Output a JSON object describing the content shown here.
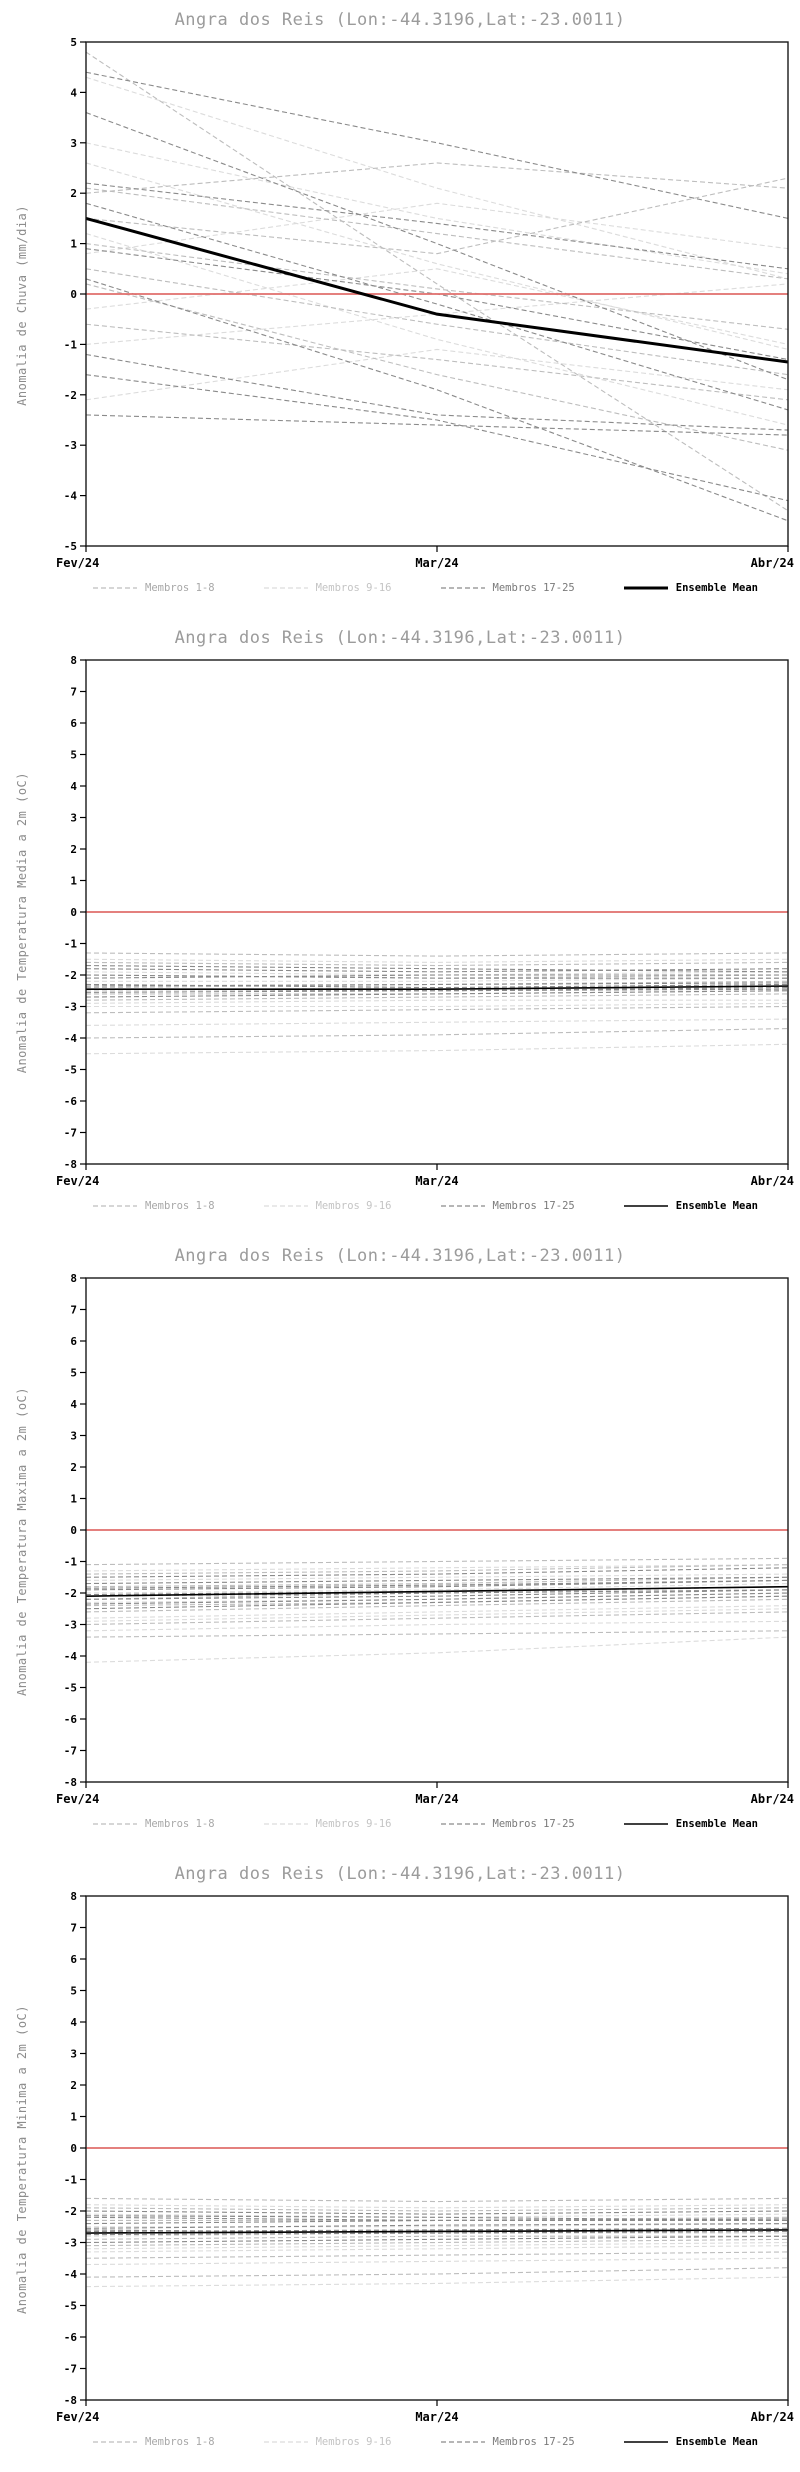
{
  "page_title": "Angra dos Reis ensemble anomaly forecasts",
  "colors": {
    "title_text": "#9b9b9b",
    "ylabel_text": "#8c8c8c",
    "axis_frame": "#1a1a1a",
    "zero_line": "#e06e6c",
    "members_1_8": "#bdbdbd",
    "members_9_16": "#dcdcdc",
    "members_17_25": "#8a8a8a",
    "ensemble_mean": "#000000"
  },
  "chart_data": [
    {
      "type": "line",
      "title": "Angra dos Reis (Lon:-44.3196,Lat:-23.0011)",
      "ylabel": "Anomalia de Chuva (mm/dia)",
      "ylim": [
        -5,
        5
      ],
      "ytick_step": 1,
      "x_labels": [
        "Fev/24",
        "Mar/24",
        "Abr/24"
      ],
      "grid": false,
      "legend_position": "bottom",
      "zero_line": {
        "value": 0,
        "color": "#e06e6c"
      },
      "mean_stroke_width": 3,
      "legend": [
        {
          "id": "m1_8",
          "label": "Membros 1-8",
          "color": "#bdbdbd",
          "text_color": "#a8a8a8",
          "style": "dashed"
        },
        {
          "id": "m9_16",
          "label": "Membros 9-16",
          "color": "#dcdcdc",
          "text_color": "#c4c4c4",
          "style": "dashed"
        },
        {
          "id": "m17_25",
          "label": "Membros 17-25",
          "color": "#8a8a8a",
          "text_color": "#7a7a7a",
          "style": "dashed"
        },
        {
          "id": "mean",
          "label": "Ensemble Mean",
          "color": "#000000",
          "text_color": "#000000",
          "style": "solid"
        }
      ],
      "series": [
        {
          "legend": "m1_8",
          "values": [
            2.1,
            1.2,
            0.3
          ]
        },
        {
          "legend": "m1_8",
          "values": [
            1.0,
            0.1,
            -0.7
          ]
        },
        {
          "legend": "m1_8",
          "values": [
            4.8,
            0.2,
            -4.3
          ]
        },
        {
          "legend": "m1_8",
          "values": [
            0.5,
            -0.6,
            -1.6
          ]
        },
        {
          "legend": "m1_8",
          "values": [
            2.0,
            2.6,
            2.1
          ]
        },
        {
          "legend": "m1_8",
          "values": [
            -0.6,
            -1.3,
            -2.1
          ]
        },
        {
          "legend": "m1_8",
          "values": [
            1.5,
            0.8,
            2.3
          ]
        },
        {
          "legend": "m1_8",
          "values": [
            0.2,
            -1.6,
            -3.1
          ]
        },
        {
          "legend": "m9_16",
          "values": [
            3.0,
            1.5,
            0.4
          ]
        },
        {
          "legend": "m9_16",
          "values": [
            -1.0,
            -0.4,
            0.2
          ]
        },
        {
          "legend": "m9_16",
          "values": [
            2.6,
            0.6,
            -1.1
          ]
        },
        {
          "legend": "m9_16",
          "values": [
            0.8,
            1.8,
            0.9
          ]
        },
        {
          "legend": "m9_16",
          "values": [
            -2.1,
            -1.1,
            -1.9
          ]
        },
        {
          "legend": "m9_16",
          "values": [
            1.2,
            -0.9,
            -2.6
          ]
        },
        {
          "legend": "m9_16",
          "values": [
            4.3,
            2.1,
            0.3
          ]
        },
        {
          "legend": "m9_16",
          "values": [
            -0.3,
            0.5,
            -1.0
          ]
        },
        {
          "legend": "m17_25",
          "values": [
            4.4,
            3.0,
            1.5
          ]
        },
        {
          "legend": "m17_25",
          "values": [
            2.2,
            1.4,
            0.5
          ]
        },
        {
          "legend": "m17_25",
          "values": [
            1.8,
            -0.2,
            -2.3
          ]
        },
        {
          "legend": "m17_25",
          "values": [
            -1.2,
            -2.4,
            -2.7
          ]
        },
        {
          "legend": "m17_25",
          "values": [
            0.9,
            0.0,
            -1.3
          ]
        },
        {
          "legend": "m17_25",
          "values": [
            -1.6,
            -2.5,
            -4.1
          ]
        },
        {
          "legend": "m17_25",
          "values": [
            3.6,
            1.0,
            -1.7
          ]
        },
        {
          "legend": "m17_25",
          "values": [
            0.3,
            -1.9,
            -4.5
          ]
        },
        {
          "legend": "m17_25",
          "values": [
            -2.4,
            -2.6,
            -2.8
          ]
        },
        {
          "legend": "mean",
          "values": [
            1.5,
            -0.4,
            -1.35
          ]
        }
      ]
    },
    {
      "type": "line",
      "title": "Angra dos Reis (Lon:-44.3196,Lat:-23.0011)",
      "ylabel": "Anomalia de Temperatura Media a 2m (oC)",
      "ylim": [
        -8,
        8
      ],
      "ytick_step": 1,
      "x_labels": [
        "Fev/24",
        "Mar/24",
        "Abr/24"
      ],
      "grid": false,
      "legend_position": "bottom",
      "zero_line": {
        "value": 0,
        "color": "#e06e6c"
      },
      "mean_stroke_width": 1.6,
      "legend": [
        {
          "id": "m1_8",
          "label": "Membros 1-8",
          "color": "#bdbdbd",
          "text_color": "#a8a8a8",
          "style": "dashed"
        },
        {
          "id": "m9_16",
          "label": "Membros 9-16",
          "color": "#dcdcdc",
          "text_color": "#c4c4c4",
          "style": "dashed"
        },
        {
          "id": "m17_25",
          "label": "Membros 17-25",
          "color": "#8a8a8a",
          "text_color": "#7a7a7a",
          "style": "dashed"
        },
        {
          "id": "mean",
          "label": "Ensemble Mean",
          "color": "#000000",
          "text_color": "#000000",
          "style": "solid"
        }
      ],
      "series": [
        {
          "legend": "m1_8",
          "values": [
            -1.6,
            -1.7,
            -1.6
          ]
        },
        {
          "legend": "m1_8",
          "values": [
            -2.0,
            -2.1,
            -2.0
          ]
        },
        {
          "legend": "m1_8",
          "values": [
            -2.4,
            -2.3,
            -2.2
          ]
        },
        {
          "legend": "m1_8",
          "values": [
            -2.8,
            -2.7,
            -2.6
          ]
        },
        {
          "legend": "m1_8",
          "values": [
            -3.2,
            -3.1,
            -3.0
          ]
        },
        {
          "legend": "m1_8",
          "values": [
            -1.3,
            -1.4,
            -1.3
          ]
        },
        {
          "legend": "m1_8",
          "values": [
            -2.6,
            -2.6,
            -2.5
          ]
        },
        {
          "legend": "m1_8",
          "values": [
            -4.0,
            -3.9,
            -3.7
          ]
        },
        {
          "legend": "m9_16",
          "values": [
            -4.5,
            -4.4,
            -4.2
          ]
        },
        {
          "legend": "m9_16",
          "values": [
            -3.6,
            -3.5,
            -3.4
          ]
        },
        {
          "legend": "m9_16",
          "values": [
            -1.9,
            -2.0,
            -1.9
          ]
        },
        {
          "legend": "m9_16",
          "values": [
            -2.2,
            -2.2,
            -2.1
          ]
        },
        {
          "legend": "m9_16",
          "values": [
            -2.9,
            -2.8,
            -2.8
          ]
        },
        {
          "legend": "m9_16",
          "values": [
            -2.5,
            -2.4,
            -2.4
          ]
        },
        {
          "legend": "m9_16",
          "values": [
            -1.5,
            -1.6,
            -1.5
          ]
        },
        {
          "legend": "m9_16",
          "values": [
            -3.0,
            -3.0,
            -2.9
          ]
        },
        {
          "legend": "m17_25",
          "values": [
            -1.8,
            -1.9,
            -1.8
          ]
        },
        {
          "legend": "m17_25",
          "values": [
            -2.1,
            -2.0,
            -2.0
          ]
        },
        {
          "legend": "m17_25",
          "values": [
            -2.3,
            -2.4,
            -2.3
          ]
        },
        {
          "legend": "m17_25",
          "values": [
            -2.7,
            -2.6,
            -2.5
          ]
        },
        {
          "legend": "m17_25",
          "values": [
            -2.0,
            -2.1,
            -2.1
          ]
        },
        {
          "legend": "m17_25",
          "values": [
            -2.45,
            -2.5,
            -2.4
          ]
        },
        {
          "legend": "m17_25",
          "values": [
            -2.55,
            -2.5,
            -2.45
          ]
        },
        {
          "legend": "m17_25",
          "values": [
            -1.7,
            -1.8,
            -1.9
          ]
        },
        {
          "legend": "m17_25",
          "values": [
            -2.35,
            -2.3,
            -2.25
          ]
        },
        {
          "legend": "mean",
          "values": [
            -2.45,
            -2.45,
            -2.35
          ]
        }
      ]
    },
    {
      "type": "line",
      "title": "Angra dos Reis (Lon:-44.3196,Lat:-23.0011)",
      "ylabel": "Anomalia de Temperatura Maxima a 2m (oC)",
      "ylim": [
        -8,
        8
      ],
      "ytick_step": 1,
      "x_labels": [
        "Fev/24",
        "Mar/24",
        "Abr/24"
      ],
      "grid": false,
      "legend_position": "bottom",
      "zero_line": {
        "value": 0,
        "color": "#e06e6c"
      },
      "mean_stroke_width": 1.6,
      "legend": [
        {
          "id": "m1_8",
          "label": "Membros 1-8",
          "color": "#bdbdbd",
          "text_color": "#a8a8a8",
          "style": "dashed"
        },
        {
          "id": "m9_16",
          "label": "Membros 9-16",
          "color": "#dcdcdc",
          "text_color": "#c4c4c4",
          "style": "dashed"
        },
        {
          "id": "m17_25",
          "label": "Membros 17-25",
          "color": "#8a8a8a",
          "text_color": "#7a7a7a",
          "style": "dashed"
        },
        {
          "id": "mean",
          "label": "Ensemble Mean",
          "color": "#000000",
          "text_color": "#000000",
          "style": "solid"
        }
      ],
      "series": [
        {
          "legend": "m1_8",
          "values": [
            -1.4,
            -1.3,
            -1.1
          ]
        },
        {
          "legend": "m1_8",
          "values": [
            -1.8,
            -1.7,
            -1.5
          ]
        },
        {
          "legend": "m1_8",
          "values": [
            -2.2,
            -2.0,
            -1.8
          ]
        },
        {
          "legend": "m1_8",
          "values": [
            -2.6,
            -2.4,
            -2.2
          ]
        },
        {
          "legend": "m1_8",
          "values": [
            -3.0,
            -2.8,
            -2.6
          ]
        },
        {
          "legend": "m1_8",
          "values": [
            -1.1,
            -1.0,
            -0.9
          ]
        },
        {
          "legend": "m1_8",
          "values": [
            -2.4,
            -2.3,
            -2.1
          ]
        },
        {
          "legend": "m1_8",
          "values": [
            -3.4,
            -3.3,
            -3.2
          ]
        },
        {
          "legend": "m9_16",
          "values": [
            -4.2,
            -3.9,
            -3.4
          ]
        },
        {
          "legend": "m9_16",
          "values": [
            -3.2,
            -3.0,
            -2.9
          ]
        },
        {
          "legend": "m9_16",
          "values": [
            -1.6,
            -1.5,
            -1.4
          ]
        },
        {
          "legend": "m9_16",
          "values": [
            -2.0,
            -1.9,
            -1.7
          ]
        },
        {
          "legend": "m9_16",
          "values": [
            -2.8,
            -2.6,
            -2.4
          ]
        },
        {
          "legend": "m9_16",
          "values": [
            -2.3,
            -2.2,
            -2.0
          ]
        },
        {
          "legend": "m9_16",
          "values": [
            -1.3,
            -1.2,
            -1.1
          ]
        },
        {
          "legend": "m9_16",
          "values": [
            -2.9,
            -2.7,
            -2.5
          ]
        },
        {
          "legend": "m17_25",
          "values": [
            -1.5,
            -1.4,
            -1.2
          ]
        },
        {
          "legend": "m17_25",
          "values": [
            -1.9,
            -1.8,
            -1.6
          ]
        },
        {
          "legend": "m17_25",
          "values": [
            -2.1,
            -2.0,
            -1.9
          ]
        },
        {
          "legend": "m17_25",
          "values": [
            -2.5,
            -2.3,
            -2.1
          ]
        },
        {
          "legend": "m17_25",
          "values": [
            -1.7,
            -1.6,
            -1.5
          ]
        },
        {
          "legend": "m17_25",
          "values": [
            -2.2,
            -2.1,
            -1.9
          ]
        },
        {
          "legend": "m17_25",
          "values": [
            -2.35,
            -2.2,
            -2.0
          ]
        },
        {
          "legend": "m17_25",
          "values": [
            -1.85,
            -1.75,
            -1.6
          ]
        },
        {
          "legend": "m17_25",
          "values": [
            -2.05,
            -1.95,
            -1.8
          ]
        },
        {
          "legend": "mean",
          "values": [
            -2.1,
            -1.95,
            -1.8
          ]
        }
      ]
    },
    {
      "type": "line",
      "title": "Angra dos Reis (Lon:-44.3196,Lat:-23.0011)",
      "ylabel": "Anomalia de Temperatura Minima a 2m (oC)",
      "ylim": [
        -8,
        8
      ],
      "ytick_step": 1,
      "x_labels": [
        "Fev/24",
        "Mar/24",
        "Abr/24"
      ],
      "grid": false,
      "legend_position": "bottom",
      "zero_line": {
        "value": 0,
        "color": "#e06e6c"
      },
      "mean_stroke_width": 1.6,
      "legend": [
        {
          "id": "m1_8",
          "label": "Membros 1-8",
          "color": "#bdbdbd",
          "text_color": "#a8a8a8",
          "style": "dashed"
        },
        {
          "id": "m9_16",
          "label": "Membros 9-16",
          "color": "#dcdcdc",
          "text_color": "#c4c4c4",
          "style": "dashed"
        },
        {
          "id": "m17_25",
          "label": "Membros 17-25",
          "color": "#8a8a8a",
          "text_color": "#7a7a7a",
          "style": "dashed"
        },
        {
          "id": "mean",
          "label": "Ensemble Mean",
          "color": "#000000",
          "text_color": "#000000",
          "style": "solid"
        }
      ],
      "series": [
        {
          "legend": "m1_8",
          "values": [
            -1.9,
            -2.0,
            -1.9
          ]
        },
        {
          "legend": "m1_8",
          "values": [
            -2.3,
            -2.3,
            -2.2
          ]
        },
        {
          "legend": "m1_8",
          "values": [
            -2.7,
            -2.6,
            -2.6
          ]
        },
        {
          "legend": "m1_8",
          "values": [
            -3.1,
            -3.0,
            -2.9
          ]
        },
        {
          "legend": "m1_8",
          "values": [
            -3.5,
            -3.4,
            -3.3
          ]
        },
        {
          "legend": "m1_8",
          "values": [
            -1.6,
            -1.7,
            -1.6
          ]
        },
        {
          "legend": "m1_8",
          "values": [
            -2.9,
            -2.8,
            -2.8
          ]
        },
        {
          "legend": "m1_8",
          "values": [
            -4.1,
            -4.0,
            -3.8
          ]
        },
        {
          "legend": "m9_16",
          "values": [
            -4.4,
            -4.3,
            -4.1
          ]
        },
        {
          "legend": "m9_16",
          "values": [
            -3.7,
            -3.6,
            -3.5
          ]
        },
        {
          "legend": "m9_16",
          "values": [
            -2.1,
            -2.2,
            -2.1
          ]
        },
        {
          "legend": "m9_16",
          "values": [
            -2.5,
            -2.5,
            -2.4
          ]
        },
        {
          "legend": "m9_16",
          "values": [
            -3.2,
            -3.1,
            -3.0
          ]
        },
        {
          "legend": "m9_16",
          "values": [
            -2.8,
            -2.7,
            -2.7
          ]
        },
        {
          "legend": "m9_16",
          "values": [
            -1.8,
            -1.9,
            -1.8
          ]
        },
        {
          "legend": "m9_16",
          "values": [
            -3.3,
            -3.2,
            -3.1
          ]
        },
        {
          "legend": "m17_25",
          "values": [
            -2.0,
            -2.1,
            -2.0
          ]
        },
        {
          "legend": "m17_25",
          "values": [
            -2.4,
            -2.3,
            -2.3
          ]
        },
        {
          "legend": "m17_25",
          "values": [
            -2.6,
            -2.7,
            -2.6
          ]
        },
        {
          "legend": "m17_25",
          "values": [
            -3.0,
            -2.9,
            -2.8
          ]
        },
        {
          "legend": "m17_25",
          "values": [
            -2.2,
            -2.3,
            -2.25
          ]
        },
        {
          "legend": "m17_25",
          "values": [
            -2.65,
            -2.6,
            -2.55
          ]
        },
        {
          "legend": "m17_25",
          "values": [
            -2.75,
            -2.7,
            -2.65
          ]
        },
        {
          "legend": "m17_25",
          "values": [
            -2.15,
            -2.2,
            -2.3
          ]
        },
        {
          "legend": "m17_25",
          "values": [
            -2.55,
            -2.45,
            -2.4
          ]
        },
        {
          "legend": "mean",
          "values": [
            -2.7,
            -2.65,
            -2.6
          ]
        }
      ]
    }
  ]
}
